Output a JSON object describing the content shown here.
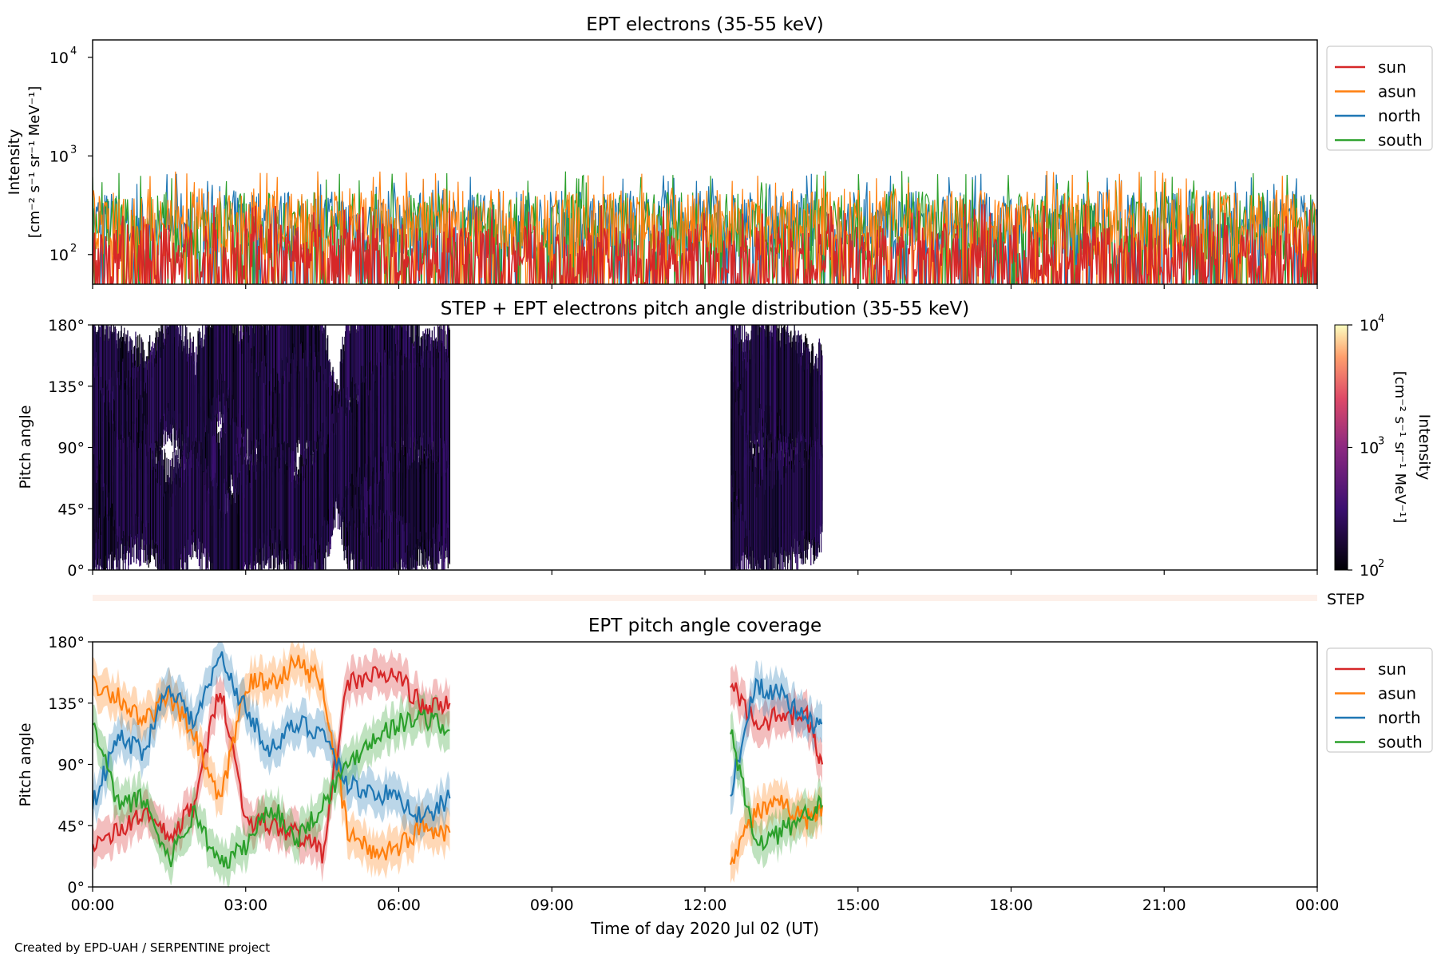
{
  "footer": {
    "credit": "Created by EPD-UAH / SERPENTINE project"
  },
  "colors": {
    "sun": "#d62728",
    "asun": "#ff7f0e",
    "north": "#1f77b4",
    "south": "#2ca02c",
    "step_bar": "#fdf0ea"
  },
  "chart_data": [
    {
      "type": "line",
      "title": "EPT electrons (35-55 keV)",
      "ylabel_line1": "Intensity",
      "ylabel_line2": "[cm⁻² s⁻¹ sr⁻¹ MeV⁻¹]",
      "yscale": "log",
      "ylim": [
        50,
        15000
      ],
      "yticks": [
        {
          "value": 100,
          "base": "10",
          "exp": "2"
        },
        {
          "value": 1000,
          "base": "10",
          "exp": "3"
        },
        {
          "value": 10000,
          "base": "10",
          "exp": "4"
        }
      ],
      "xlim_hours": [
        0,
        24
      ],
      "legend_position": "outside-right-top",
      "series": [
        {
          "name": "sun",
          "color": "#d62728",
          "approx_level": 100,
          "approx_peak": 300
        },
        {
          "name": "asun",
          "color": "#ff7f0e",
          "approx_level": 230,
          "approx_peak": 650
        },
        {
          "name": "north",
          "color": "#1f77b4",
          "approx_level": 220,
          "approx_peak": 600
        },
        {
          "name": "south",
          "color": "#2ca02c",
          "approx_level": 210,
          "approx_peak": 650
        }
      ]
    },
    {
      "type": "heatmap",
      "title": "STEP + EPT electrons pitch angle distribution (35-55 keV)",
      "ylabel": "Pitch angle",
      "ylim": [
        0,
        180
      ],
      "yticks": [
        "0°",
        "45°",
        "90°",
        "135°",
        "180°"
      ],
      "data_intervals_hours": [
        [
          0,
          7.0
        ],
        [
          12.5,
          14.3
        ]
      ],
      "colorbar": {
        "label_line1": "Intensity",
        "label_line2": "[cm⁻² s⁻¹ sr⁻¹ MeV⁻¹]",
        "scale": "log",
        "range": [
          100,
          10000
        ],
        "ticks": [
          {
            "value": 100,
            "base": "10",
            "exp": "2"
          },
          {
            "value": 1000,
            "base": "10",
            "exp": "3"
          },
          {
            "value": 10000,
            "base": "10",
            "exp": "4"
          }
        ]
      }
    },
    {
      "type": "bar",
      "label": "STEP",
      "xlim_hours": [
        0,
        24
      ]
    },
    {
      "type": "line",
      "title": "EPT pitch angle coverage",
      "ylabel": "Pitch angle",
      "ylim": [
        0,
        180
      ],
      "yticks": [
        "0°",
        "45°",
        "90°",
        "135°",
        "180°"
      ],
      "xlabel": "Time of day 2020 Jul 02 (UT)",
      "xticks": [
        "00:00",
        "03:00",
        "06:00",
        "09:00",
        "12:00",
        "15:00",
        "18:00",
        "21:00",
        "00:00"
      ],
      "xlim_hours": [
        0,
        24
      ],
      "legend_position": "outside-right-top",
      "series": [
        {
          "name": "sun",
          "color": "#d62728",
          "x": [
            0,
            0.5,
            1.0,
            1.5,
            2.0,
            2.5,
            3.0,
            3.5,
            4.0,
            4.5,
            5.0,
            5.5,
            6.0,
            6.5,
            7.0,
            12.5,
            13.0,
            13.5,
            14.0,
            14.3
          ],
          "y": [
            30,
            40,
            55,
            35,
            60,
            150,
            50,
            45,
            40,
            25,
            150,
            155,
            155,
            130,
            135,
            150,
            120,
            125,
            125,
            90
          ]
        },
        {
          "name": "asun",
          "color": "#ff7f0e",
          "x": [
            0,
            0.5,
            1.0,
            1.5,
            2.0,
            2.5,
            3.0,
            3.5,
            4.0,
            4.5,
            5.0,
            5.5,
            6.0,
            6.5,
            7.0,
            12.5,
            13.0,
            13.5,
            14.0,
            14.3
          ],
          "y": [
            150,
            140,
            120,
            140,
            110,
            60,
            150,
            150,
            165,
            150,
            40,
            25,
            30,
            45,
            40,
            20,
            55,
            60,
            50,
            60
          ]
        },
        {
          "name": "north",
          "color": "#1f77b4",
          "x": [
            0,
            0.5,
            1.0,
            1.5,
            2.0,
            2.5,
            3.0,
            3.5,
            4.0,
            4.5,
            5.0,
            5.5,
            6.0,
            6.5,
            7.0,
            12.5,
            13.0,
            13.5,
            14.0,
            14.3
          ],
          "y": [
            60,
            110,
            100,
            150,
            120,
            170,
            130,
            100,
            120,
            115,
            75,
            70,
            65,
            50,
            65,
            70,
            150,
            140,
            120,
            120
          ]
        },
        {
          "name": "south",
          "color": "#2ca02c",
          "x": [
            0,
            0.5,
            1.0,
            1.5,
            2.0,
            2.5,
            3.0,
            3.5,
            4.0,
            4.5,
            5.0,
            5.5,
            6.0,
            6.5,
            7.0,
            12.5,
            13.0,
            13.5,
            14.0,
            14.3
          ],
          "y": [
            120,
            60,
            65,
            20,
            55,
            15,
            30,
            60,
            35,
            60,
            90,
            110,
            120,
            125,
            115,
            115,
            30,
            40,
            55,
            60
          ]
        }
      ]
    }
  ]
}
